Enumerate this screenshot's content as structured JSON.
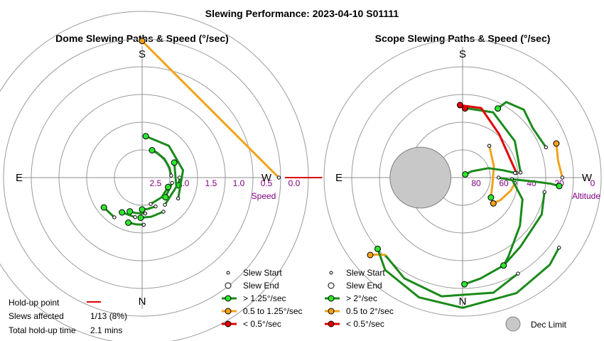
{
  "title": "Slewing Performance: 2023-04-10 S01111",
  "colors": {
    "green": "#1a8a1a",
    "orange": "#f2a21a",
    "red": "#e00000",
    "ring": "#9a9a9a",
    "axis": "#8c8c8c",
    "label": "#800080",
    "dec_fill": "#c8c8c8",
    "dec_stroke": "#808080"
  },
  "chart_data": [
    {
      "type": "polar-scatter-line",
      "title": "Dome Slewing Paths & Speed (°/sec)",
      "cardinals": {
        "top": "S",
        "bottom": "N",
        "left": "E",
        "right": "W"
      },
      "radial_axis": {
        "name": "Speed",
        "ticks": [
          {
            "label": "2.5",
            "r": 1
          },
          {
            "label": "2.0",
            "r": 2
          },
          {
            "label": "1.5",
            "r": 3
          },
          {
            "label": "1.0",
            "r": 4
          },
          {
            "label": "0.5",
            "r": 5
          },
          {
            "label": "0.0",
            "r": 6
          }
        ]
      },
      "holdup_segments": [
        {
          "az": 180,
          "r_from": 5.15,
          "r_to": 6.5,
          "color": "red"
        }
      ],
      "slews": [
        {
          "segments": [
            {
              "color": "orange",
              "points": [
                [
                  180,
                  4.93
                ],
                [
                  270,
                  4.93
                ]
              ]
            }
          ],
          "start": [
            180,
            4.93
          ],
          "end": [
            270,
            4.93
          ],
          "marker": "orange"
        },
        {
          "segments": [
            {
              "color": "green",
              "points": [
                [
                  180,
                  1.35
                ],
                [
                  168,
                  1.35
                ]
              ]
            }
          ],
          "start": [
            180,
            1.35
          ],
          "end": [
            168,
            1.35
          ],
          "marker": "green"
        },
        {
          "segments": [
            {
              "color": "green",
              "points": [
                [
                  170,
                  1.1
                ],
                [
                  140,
                  1.1
                ]
              ]
            }
          ],
          "start": [
            170,
            1.1
          ],
          "end": [
            140,
            1.1
          ],
          "marker": "green"
        },
        {
          "segments": [
            {
              "color": "green",
              "points": [
                [
                  184,
                  1.05
                ],
                [
                  200,
                  1.05
                ],
                [
                  220,
                  1.05
                ],
                [
                  240,
                  1.05
                ],
                [
                  250,
                  1.05
                ]
              ]
            }
          ],
          "start": [
            184,
            1.05
          ],
          "end": [
            250,
            1.05
          ],
          "marker": "green"
        },
        {
          "segments": [
            {
              "color": "green",
              "points": [
                [
                  150,
                  1.5
                ],
                [
                  190,
                  1.5
                ],
                [
                  230,
                  1.5
                ],
                [
                  265,
                  1.5
                ]
              ]
            }
          ],
          "start": [
            150,
            1.5
          ],
          "end": [
            265,
            1.5
          ],
          "marker": "green"
        },
        {
          "segments": [
            {
              "color": "green",
              "points": [
                [
                  130,
                  1.28
                ],
                [
                  165,
                  1.28
                ],
                [
                  205,
                  1.28
                ]
              ]
            }
          ],
          "start": [
            130,
            1.28
          ],
          "end": [
            205,
            1.28
          ],
          "marker": "green"
        },
        {
          "segments": [
            {
              "color": "green",
              "points": [
                [
                  108,
                  1.0
                ],
                [
                  135,
                  1.0
                ],
                [
                  160,
                  1.0
                ]
              ]
            }
          ],
          "start": [
            108,
            1.0
          ],
          "end": [
            160,
            1.0
          ],
          "marker": "green"
        },
        {
          "segments": [
            {
              "color": "green",
              "points": [
                [
                  115,
                  1.15
                ],
                [
                  100,
                  1.15
                ],
                [
                  90,
                  1.15
                ]
              ]
            }
          ],
          "start": [
            115,
            1.15
          ],
          "end": [
            90,
            1.15
          ],
          "marker": "green"
        },
        {
          "segments": [
            {
              "color": "green",
              "points": [
                [
                  122,
                  1.45
                ],
                [
                  103,
                  1.45
                ],
                [
                  88,
                  1.45
                ]
              ]
            }
          ],
          "start": [
            122,
            1.45
          ],
          "end": [
            88,
            1.45
          ],
          "marker": "green"
        },
        {
          "segments": [
            {
              "color": "green",
              "points": [
                [
                  95,
                  1.3
                ],
                [
                  80,
                  1.3
                ],
                [
                  70,
                  1.3
                ]
              ]
            }
          ],
          "start": [
            95,
            1.3
          ],
          "end": [
            70,
            1.3
          ],
          "marker": "green"
        },
        {
          "segments": [
            {
              "color": "green",
              "points": [
                [
                  80,
                  1.45
                ],
                [
                  60,
                  1.45
                ]
              ]
            }
          ],
          "start": [
            80,
            1.45
          ],
          "end": [
            60,
            1.45
          ],
          "marker": "green"
        },
        {
          "segments": [
            {
              "color": "green",
              "points": [
                [
                  92,
                  1.7
                ],
                [
                  82,
                  1.7
                ],
                [
                  73,
                  1.7
                ]
              ]
            }
          ],
          "start": [
            92,
            1.7
          ],
          "end": [
            73,
            1.7
          ],
          "marker": "green"
        },
        {
          "segments": [
            {
              "color": "green",
              "points": [
                [
                  55,
                  1.75
                ],
                [
                  38,
                  1.75
                ]
              ]
            }
          ],
          "start": [
            55,
            1.75
          ],
          "end": [
            38,
            1.75
          ],
          "marker": "green"
        }
      ]
    },
    {
      "type": "polar-scatter-line",
      "title": "Scope Slewing Paths & Speed (°/sec)",
      "cardinals": {
        "top": "S",
        "bottom": "N",
        "left": "E",
        "right": "W"
      },
      "radial_axis": {
        "name": "Altitude",
        "ticks": [
          {
            "label": "80",
            "r": 1
          },
          {
            "label": "60",
            "r": 2
          },
          {
            "label": "40",
            "r": 3
          },
          {
            "label": "20",
            "r": 4
          },
          {
            "label": "0",
            "r": 5
          }
        ]
      },
      "dec_limit": {
        "az": 0,
        "r": 1.52,
        "radius": 1.1
      },
      "slews": [
        {
          "segments": [
            {
              "color": "green",
              "points": [
                [
                  178,
                  1.78
                ],
                [
                  177,
                  2.5
                ],
                [
                  176,
                  3.2
                ],
                [
                  175,
                  3.5
                ]
              ]
            }
          ],
          "start": [
            178,
            1.78
          ],
          "end": [
            175,
            3.5
          ],
          "marker": "green"
        },
        {
          "segments": [
            {
              "color": "orange",
              "points": [
                [
                  180,
                  3.6
                ],
                [
                  190,
                  3.5
                ],
                [
                  200,
                  3.6
                ]
              ]
            }
          ],
          "start": [
            180,
            3.6
          ],
          "end": [
            200,
            3.6
          ],
          "marker": "orange"
        },
        {
          "segments": [
            {
              "color": "green",
              "points": [
                [
                  200,
                  3.2
                ],
                [
                  215,
                  3.1
                ],
                [
                  228,
                  3.3
                ],
                [
                  240,
                  3.15
                ],
                [
                  243,
                  2.8
                ]
              ]
            }
          ],
          "start": [
            200,
            3.2
          ],
          "end": [
            243,
            2.8
          ],
          "marker": "green"
        },
        {
          "segments": [
            {
              "color": "green",
              "points": [
                [
                  170,
                  3.0
                ],
                [
                  155,
                  3.15
                ],
                [
                  130,
                  3.25
                ],
                [
                  115,
                  3.5
                ],
                [
                  100,
                  3.7
                ],
                [
                  91,
                  3.85
                ]
              ]
            }
          ],
          "start": [
            170,
            3.0
          ],
          "end": [
            91,
            3.85
          ],
          "marker": "green"
        },
        {
          "segments": [
            {
              "color": "green",
              "points": [
                [
                  185,
                  2.1
                ],
                [
                  215,
                  2.3
                ],
                [
                  245,
                  2.6
                ],
                [
                  265,
                  2.5
                ],
                [
                  268,
                  2.5
                ]
              ]
            }
          ],
          "start": [
            185,
            2.1
          ],
          "end": [
            268,
            2.5
          ],
          "marker": "red"
        },
        {
          "segments": [
            {
              "color": "red",
              "points": [
                [
                  185,
                  1.95
                ],
                [
                  230,
                  2.05
                ],
                [
                  255,
                  2.6
                ],
                [
                  270,
                  2.6
                ],
                [
                  272,
                  2.62
                ]
              ]
            }
          ],
          "start": [
            185,
            1.95
          ],
          "end": [
            272,
            2.62
          ],
          "marker": "red"
        },
        {
          "segments": [
            {
              "color": "orange",
              "points": [
                [
                  174,
                  1.9
                ],
                [
                  165,
                  1.8
                ],
                [
                  150,
                  1.6
                ],
                [
                  140,
                  1.45
                ]
              ]
            }
          ],
          "start": [
            174,
            1.9
          ],
          "end": [
            140,
            1.45
          ],
          "marker": "orange"
        },
        {
          "segments": [
            {
              "color": "orange",
              "points": [
                [
                  230,
                  1.5
                ],
                [
                  200,
                  1.2
                ],
                [
                  170,
                  1.1
                ],
                [
                  145,
                  1.25
                ]
              ]
            }
          ],
          "start": [
            230,
            1.5
          ],
          "end": [
            145,
            1.25
          ],
          "marker": "green"
        },
        {
          "segments": [
            {
              "color": "green",
              "points": [
                [
                  185,
                  1.9
                ],
                [
                  190,
                  1.5
                ],
                [
                  200,
                  1.0
                ],
                [
                  215,
                  0.4
                ],
                [
                  230,
                  0.15
                ]
              ]
            }
          ],
          "start": [
            185,
            1.9
          ],
          "end": [
            230,
            0.15
          ],
          "marker": "green"
        },
        {
          "segments": [
            {
              "color": "green",
              "points": [
                [
                  180,
                  1.3
                ],
                [
                  177,
                  1.8
                ],
                [
                  160,
                  2.3
                ],
                [
                  140,
                  2.7
                ],
                [
                  120,
                  3.3
                ],
                [
                  115,
                  3.5
                ]
              ]
            }
          ],
          "start": [
            180,
            1.3
          ],
          "end": [
            115,
            3.5
          ],
          "marker": "green"
        },
        {
          "segments": [
            {
              "color": "green",
              "points": [
                [
                  120,
                  4.0
                ],
                [
                  105,
                  4.3
                ],
                [
                  80,
                  4.35
                ],
                [
                  60,
                  4.2
                ],
                [
                  45,
                  3.95
                ]
              ]
            },
            {
              "color": "orange",
              "points": [
                [
                  45,
                  3.95
                ],
                [
                  42,
                  4.15
                ],
                [
                  40,
                  4.35
                ]
              ]
            }
          ],
          "start": [
            120,
            4.0
          ],
          "end": [
            40,
            4.35
          ],
          "marker": "orange"
        },
        {
          "segments": [
            {
              "color": "green",
              "points": [
                [
                  144,
                  4.3
                ],
                [
                  135,
                  4.45
                ],
                [
                  115,
                  4.6
                ],
                [
                  90,
                  4.7
                ],
                [
                  70,
                  4.6
                ],
                [
                  50,
                  4.35
                ],
                [
                  40,
                  4.0
                ]
              ]
            }
          ],
          "start": [
            144,
            4.3
          ],
          "end": [
            40,
            4.0
          ],
          "marker": "green"
        }
      ]
    }
  ],
  "legend_dome": {
    "start": "Slew Start",
    "end": "Slew End",
    "fast": "> 1.25°/sec",
    "mid": "0.5 to 1.25°/sec",
    "slow": "< 0.5°/sec"
  },
  "legend_scope": {
    "start": "Slew Start",
    "end": "Slew End",
    "fast": "> 2°/sec",
    "mid": "0.5 to 2°/sec",
    "slow": "< 0.5°/sec"
  },
  "dec_limit_label": "Dec Limit",
  "holdup": {
    "point_label": "Hold-up point",
    "slews_label": "Slews affected",
    "slews_value": "1/13 (8%)",
    "time_label": "Total hold-up time",
    "time_value": "2.1 mins"
  }
}
